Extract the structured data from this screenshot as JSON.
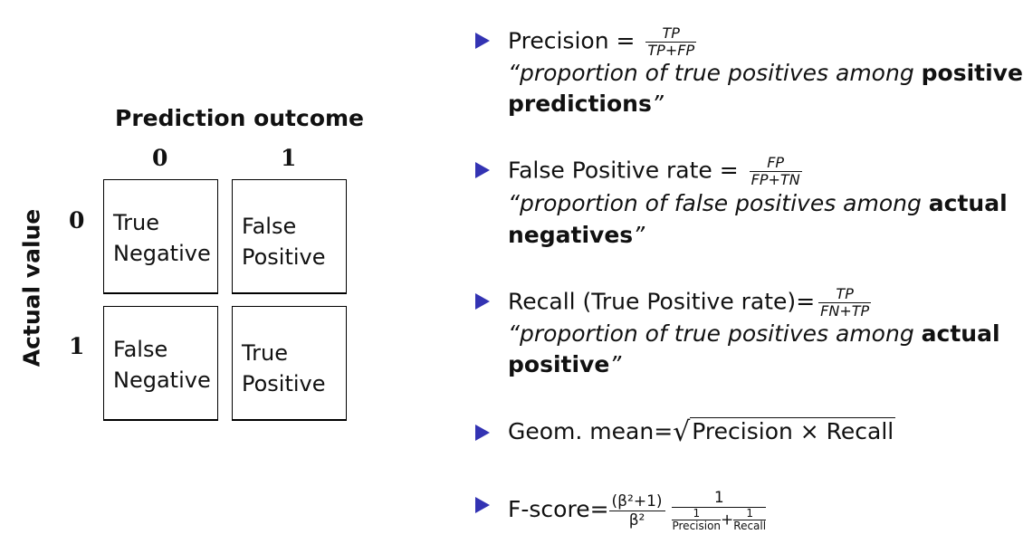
{
  "matrix": {
    "prediction_title": "Prediction outcome",
    "actual_title": "Actual value",
    "col_labels": [
      "0",
      "1"
    ],
    "row_labels": [
      "0",
      "1"
    ],
    "cells": {
      "tn": "True\nNegative",
      "fp": "False\nPositive",
      "fn": "False\nNegative",
      "tp": "True\nPositive"
    }
  },
  "bullets": {
    "precision": {
      "label": "Precision =",
      "num": "TP",
      "den": "TP+FP",
      "desc_italic": "“proportion of true positives among ",
      "desc_bold1": "positive",
      "desc_bold2": "predictions",
      "desc_end": "”"
    },
    "fpr": {
      "label": "False Positive rate =",
      "num": "FP",
      "den": "FP+TN",
      "desc_italic": "“proportion of false positives among ",
      "desc_bold1": "actual",
      "desc_bold2": "negatives",
      "desc_end": "”"
    },
    "recall": {
      "label": "Recall (True Positive rate)=",
      "num": "TP",
      "den": "FN+TP",
      "desc_italic": "“proportion of true positives among ",
      "desc_bold1": "actual",
      "desc_bold2": "positive",
      "desc_end": "”"
    },
    "gmean": {
      "label": "Geom. mean=",
      "radicand": "Precision × Recall"
    },
    "fscore": {
      "label": "F-score=",
      "num1": "(β²+1)",
      "den1": "β²",
      "num2": "1",
      "p_num": "1",
      "p_den": "Precision",
      "plus": "+",
      "r_num": "1",
      "r_den": "Recall"
    }
  },
  "colors": {
    "bullet": "#3333b3"
  }
}
